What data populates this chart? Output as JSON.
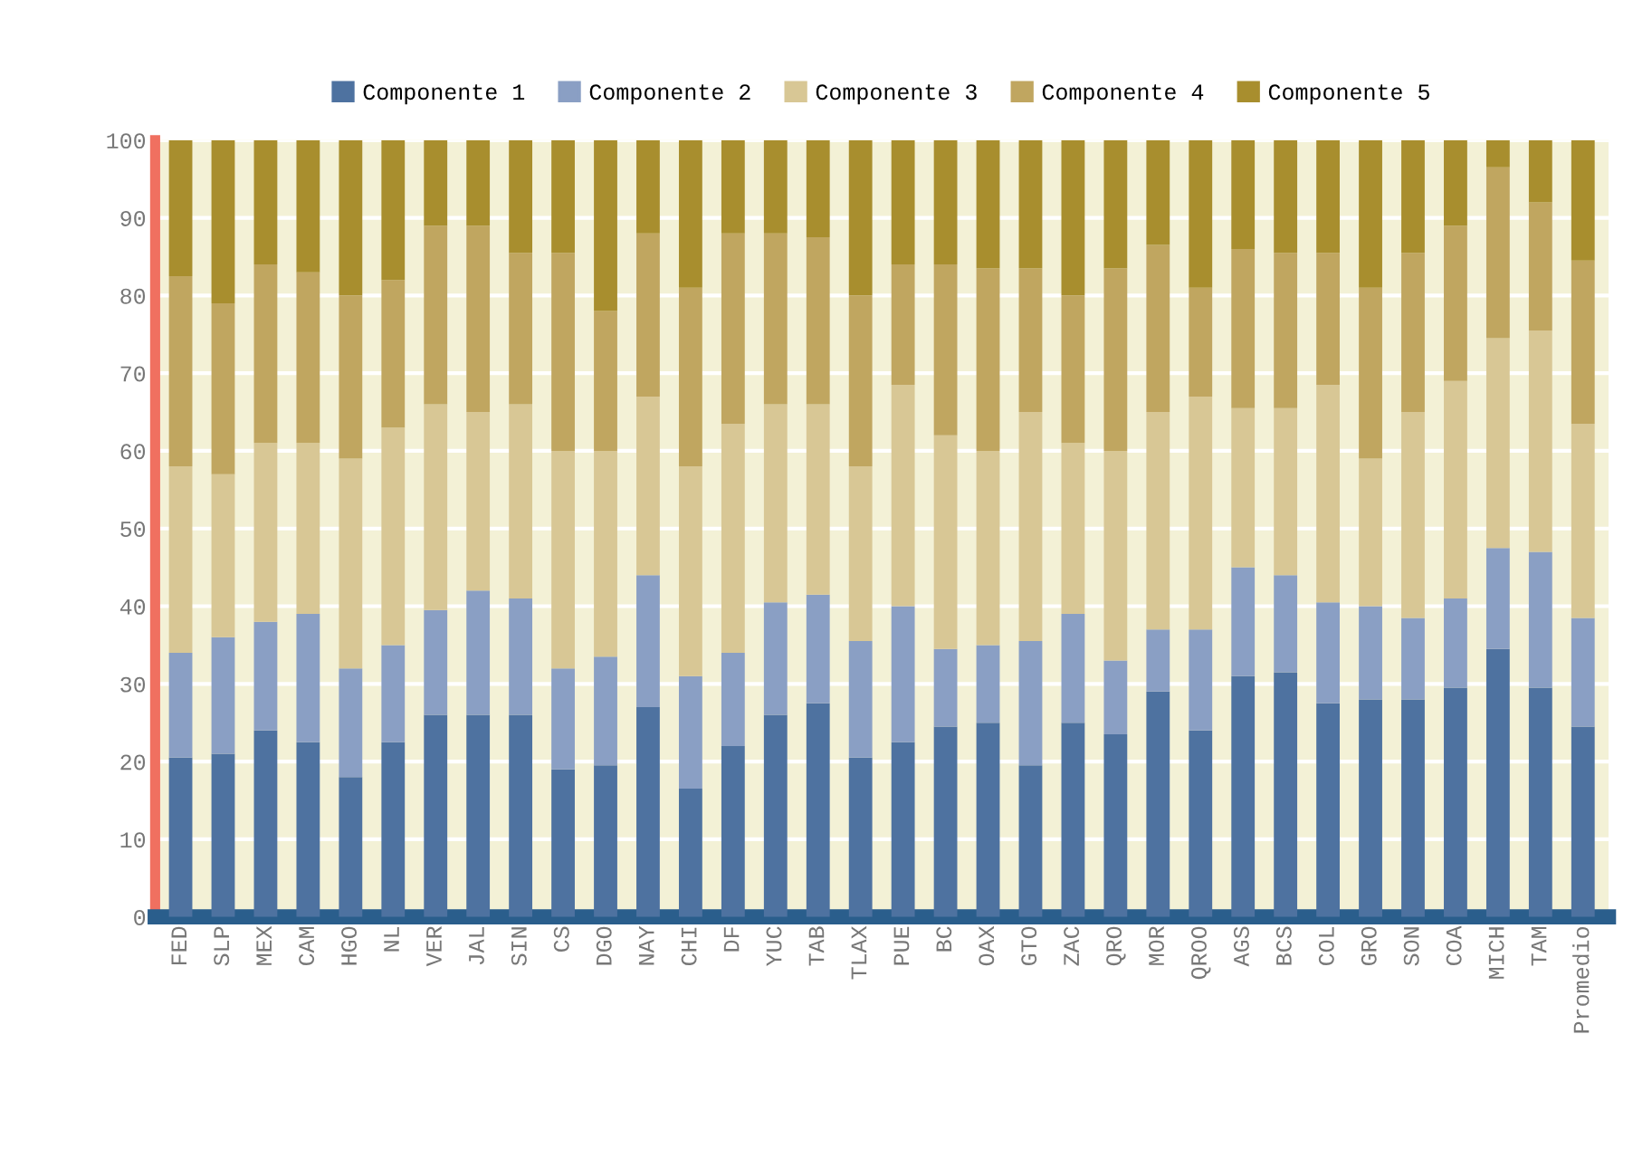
{
  "chart_data": {
    "type": "bar",
    "stacked": true,
    "categories": [
      "FED",
      "SLP",
      "MEX",
      "CAM",
      "HGO",
      "NL",
      "VER",
      "JAL",
      "SIN",
      "CS",
      "DGO",
      "NAY",
      "CHI",
      "DF",
      "YUC",
      "TAB",
      "TLAX",
      "PUE",
      "BC",
      "OAX",
      "GTO",
      "ZAC",
      "QRO",
      "MOR",
      "QROO",
      "AGS",
      "BCS",
      "COL",
      "GRO",
      "SON",
      "COA",
      "MICH",
      "TAM",
      "Promedio"
    ],
    "series": [
      {
        "name": "Componente 1",
        "color": "#4e72a0",
        "values": [
          20.5,
          21,
          24,
          22.5,
          18,
          22.5,
          26,
          26,
          26,
          19,
          19.5,
          27,
          16.5,
          22,
          26,
          27.5,
          20.5,
          22.5,
          24.5,
          25,
          19.5,
          25,
          23.5,
          29,
          24,
          31,
          31.5,
          27.5,
          28,
          28,
          29.5,
          34.5,
          29.5,
          24.5
        ]
      },
      {
        "name": "Componente 2",
        "color": "#8a9fc4",
        "values": [
          13.5,
          15,
          14,
          16.5,
          14,
          12.5,
          13.5,
          16,
          15,
          13,
          14,
          17,
          14.5,
          12,
          14.5,
          14,
          15,
          17.5,
          10,
          10,
          16,
          14,
          9.5,
          8,
          13,
          14,
          12.5,
          13,
          12,
          10.5,
          11.5,
          13,
          17.5,
          14
        ]
      },
      {
        "name": "Componente 3",
        "color": "#d8c795",
        "values": [
          24,
          21,
          23,
          22,
          27,
          28,
          26.5,
          23,
          25,
          28,
          26.5,
          23,
          27,
          29.5,
          25.5,
          24.5,
          22.5,
          28.5,
          27.5,
          25,
          29.5,
          22,
          27,
          28,
          30,
          20.5,
          21.5,
          28,
          19,
          26.5,
          28,
          27,
          28.5,
          25
        ]
      },
      {
        "name": "Componente 4",
        "color": "#c0a660",
        "values": [
          24.5,
          22,
          23,
          22,
          21,
          19,
          23,
          24,
          19.5,
          25.5,
          18,
          21,
          23,
          24.5,
          22,
          21.5,
          22,
          15.5,
          22,
          23.5,
          18.5,
          19,
          23.5,
          21.5,
          14,
          20.5,
          20,
          17,
          22,
          20.5,
          20,
          22,
          16.5,
          21
        ]
      },
      {
        "name": "Componente 5",
        "color": "#a88e2e",
        "values": [
          17.5,
          21,
          16,
          17,
          20,
          18,
          11,
          11,
          14.5,
          14.5,
          22,
          12,
          19,
          12,
          12,
          12.5,
          20,
          16,
          16,
          16.5,
          16.5,
          20,
          16.5,
          13.5,
          19,
          14,
          14.5,
          14.5,
          19,
          14.5,
          11,
          3.5,
          8,
          15.5
        ]
      }
    ],
    "ylim": [
      0,
      100
    ],
    "yticks": [
      0,
      10,
      20,
      30,
      40,
      50,
      60,
      70,
      80,
      90,
      100
    ],
    "grid": "y",
    "legend": "top"
  }
}
